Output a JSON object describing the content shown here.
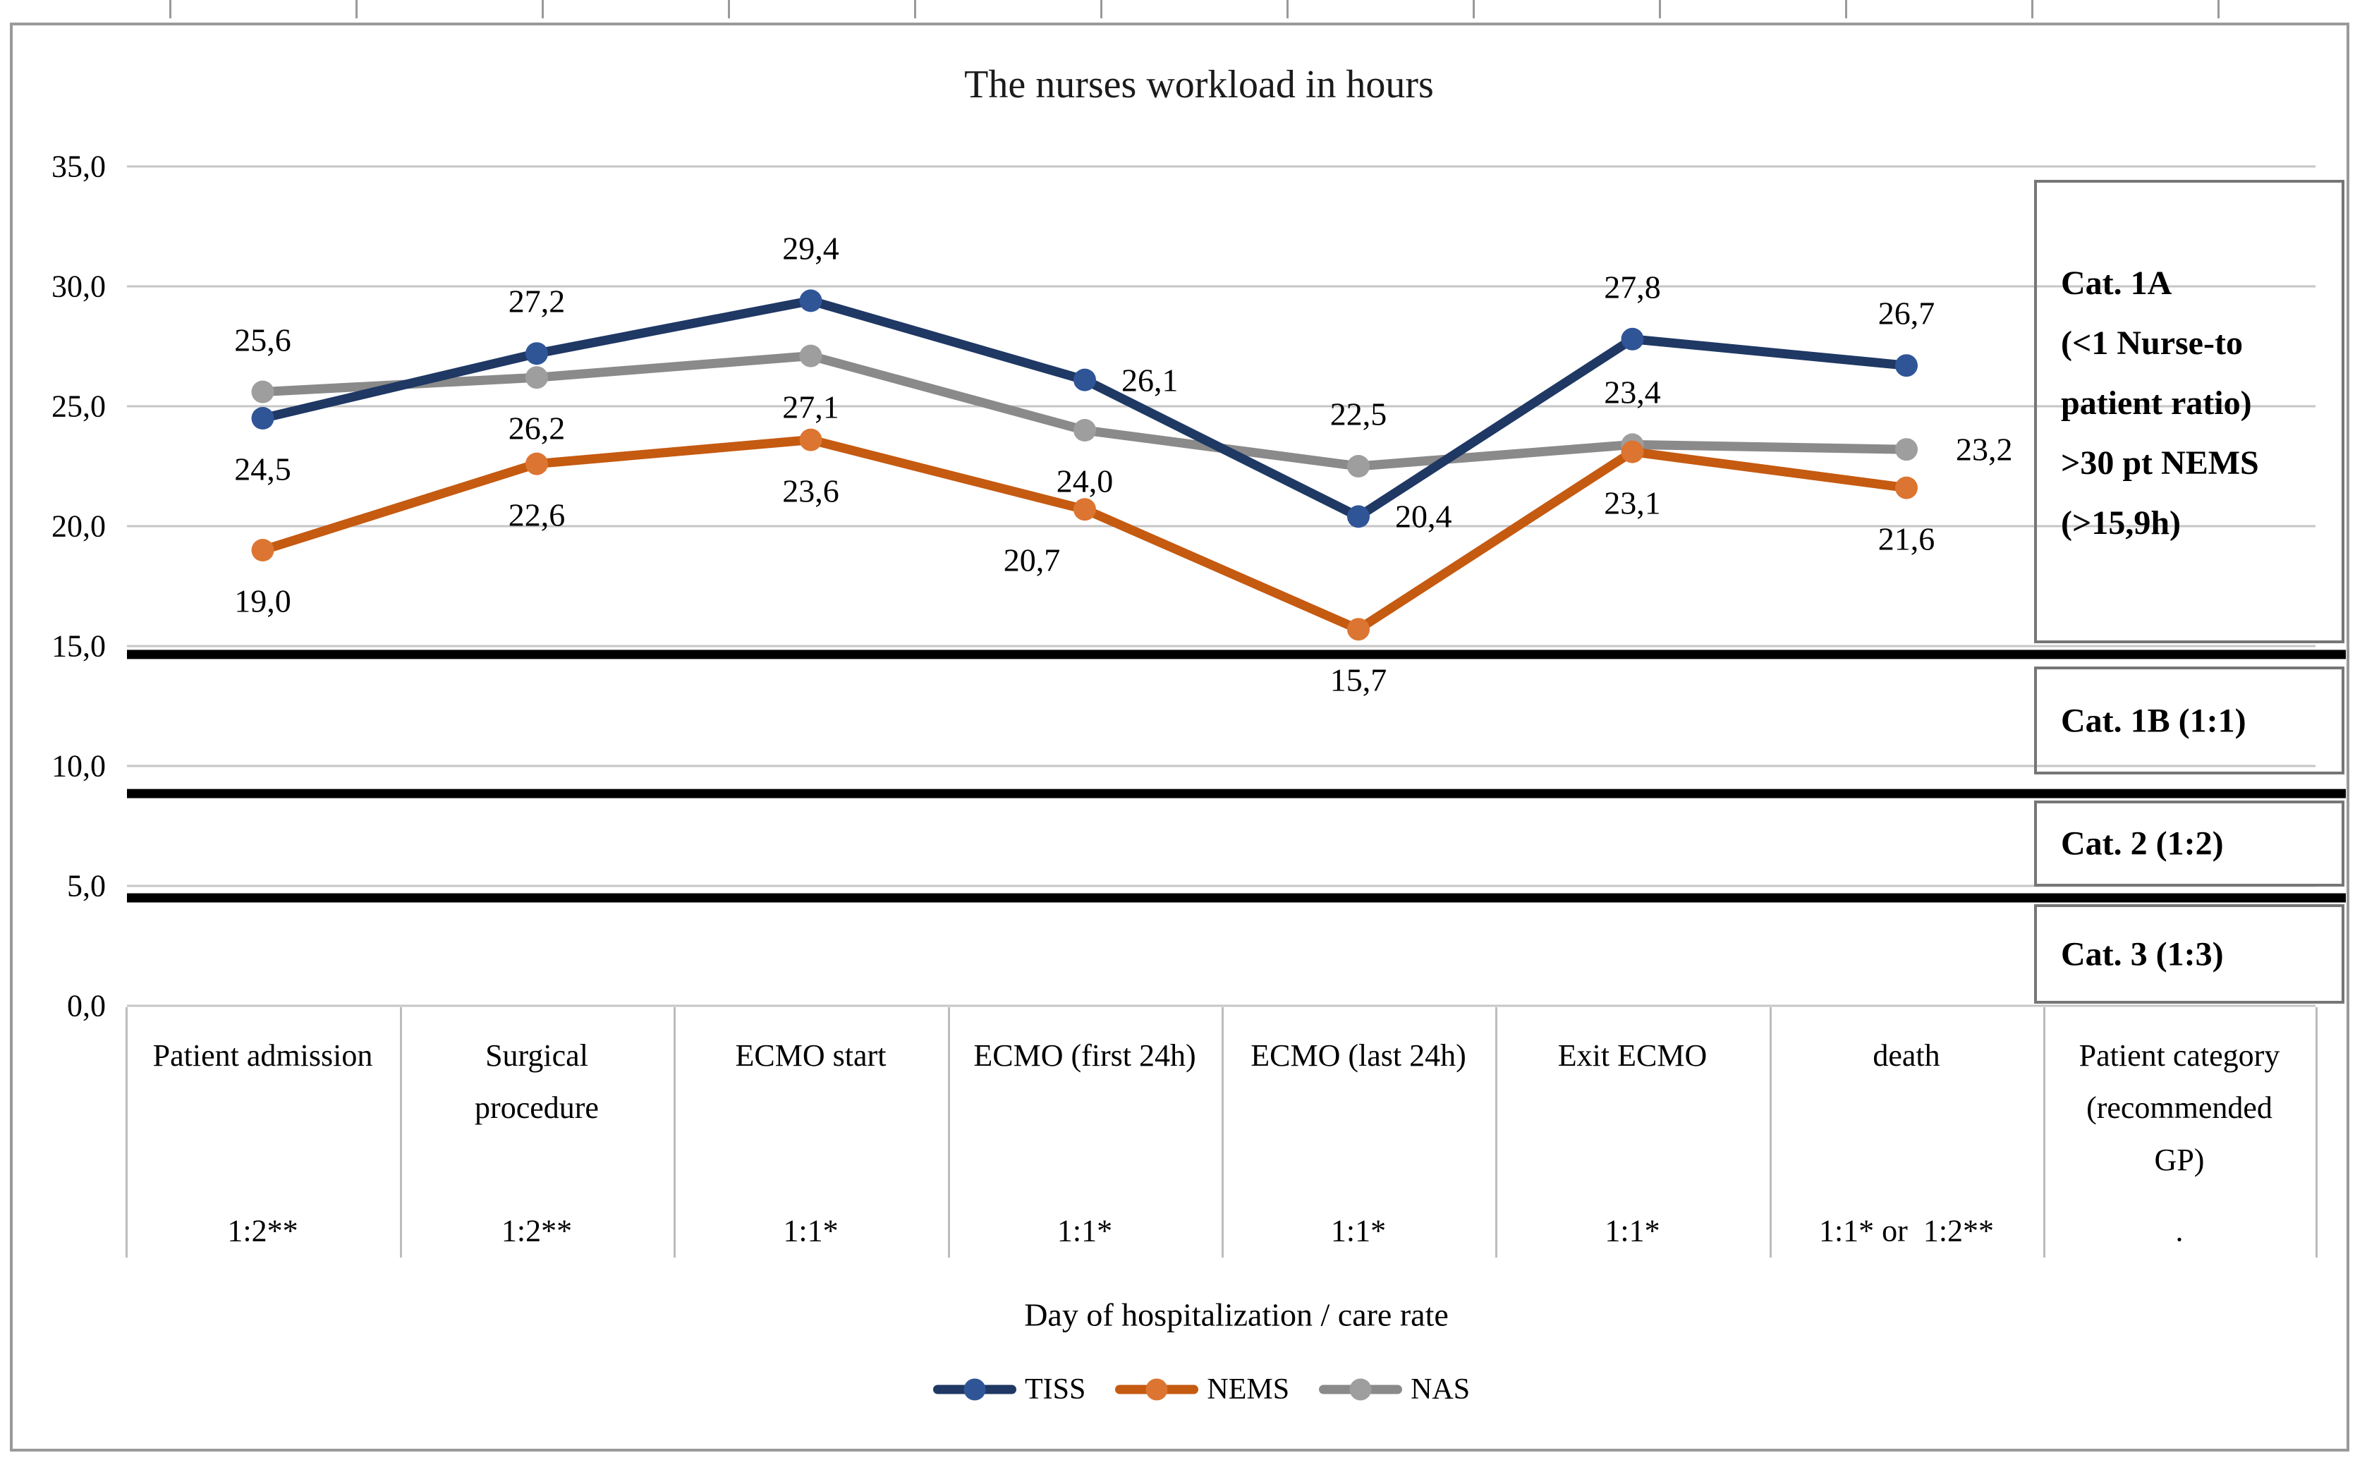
{
  "title": "The nurses workload in hours",
  "chart_data": {
    "type": "line",
    "title": "The nurses workload in hours",
    "xlabel": "Day of hospitalization / care rate",
    "ylabel": "",
    "ylim": [
      0,
      35
    ],
    "grid": true,
    "legend_position": "bottom",
    "categories": [
      "Patient admission",
      "Surgical procedure",
      "ECMO start",
      "ECMO (first 24h)",
      "ECMO (last 24h)",
      "Exit ECMO",
      "death"
    ],
    "care_rates": [
      "1:2**",
      "1:2**",
      "1:1*",
      "1:1*",
      "1:1*",
      "1:1*",
      "1:1* or  1:2**"
    ],
    "y_ticks": [
      {
        "label": "35,0",
        "value": 35
      },
      {
        "label": "30,0",
        "value": 30
      },
      {
        "label": "25,0",
        "value": 25
      },
      {
        "label": "20,0",
        "value": 20
      },
      {
        "label": "15,0",
        "value": 15
      },
      {
        "label": "10,0",
        "value": 10
      },
      {
        "label": "5,0",
        "value": 5
      },
      {
        "label": "0,0",
        "value": 0
      }
    ],
    "thresholds": [
      14.65,
      8.85,
      4.5
    ],
    "series": [
      {
        "name": "NAS",
        "color": "#8a8a8a",
        "marker_color": "#9e9e9e",
        "values": [
          25.6,
          26.2,
          27.1,
          24.0,
          22.5,
          23.4,
          23.2
        ],
        "labels": [
          "25,6",
          "26,2",
          "27,1",
          "24,0",
          "22,5",
          "23,4",
          "23,2"
        ],
        "label_pos": [
          "above",
          "below",
          "below",
          "below",
          "above",
          "above",
          "right"
        ],
        "label_dx": [
          0,
          0,
          0,
          0,
          0,
          0,
          18
        ]
      },
      {
        "name": "NEMS",
        "color": "#c55a11",
        "marker_color": "#dc7531",
        "values": [
          19.0,
          22.6,
          23.6,
          20.7,
          15.7,
          23.1,
          21.6
        ],
        "labels": [
          "19,0",
          "22,6",
          "23,6",
          "20,7",
          "15,7",
          "23,1",
          "21,6"
        ],
        "label_pos": [
          "below",
          "below",
          "below",
          "below",
          "below",
          "below",
          "below"
        ],
        "label_dx": [
          0,
          0,
          0,
          -75,
          0,
          0,
          0
        ]
      },
      {
        "name": "TISS",
        "color": "#1f3864",
        "marker_color": "#2f5597",
        "values": [
          24.5,
          27.2,
          29.4,
          26.1,
          20.4,
          27.8,
          26.7
        ],
        "labels": [
          "24,5",
          "27,2",
          "29,4",
          "26,1",
          "20,4",
          "27,8",
          "26,7"
        ],
        "label_pos": [
          "below",
          "above",
          "above",
          "right",
          "right",
          "above",
          "above"
        ],
        "label_dx": [
          0,
          0,
          0,
          0,
          0,
          0,
          0
        ]
      }
    ]
  },
  "legend": [
    "TISS",
    "NEMS",
    "NAS"
  ],
  "category_boxes": [
    {
      "lines": [
        "Cat. 1A",
        "(<1 Nurse-to",
        "patient ratio)",
        ">30 pt NEMS",
        "(>15,9h)"
      ]
    },
    {
      "lines": [
        "Cat. 1B (1:1)"
      ]
    },
    {
      "lines": [
        "Cat. 2 (1:2)"
      ]
    },
    {
      "lines": [
        "Cat. 3 (1:3)"
      ]
    }
  ],
  "table": {
    "columns": [
      {
        "header_lines": [
          "Patient admission"
        ],
        "care_rate": "1:2**"
      },
      {
        "header_lines": [
          "Surgical",
          "procedure"
        ],
        "care_rate": "1:2**"
      },
      {
        "header_lines": [
          "ECMO start"
        ],
        "care_rate": "1:1*"
      },
      {
        "header_lines": [
          "ECMO (first 24h)"
        ],
        "care_rate": "1:1*"
      },
      {
        "header_lines": [
          "ECMO (last 24h)"
        ],
        "care_rate": "1:1*"
      },
      {
        "header_lines": [
          "Exit ECMO"
        ],
        "care_rate": "1:1*"
      },
      {
        "header_lines": [
          "death"
        ],
        "care_rate": "1:1* or  1:2**"
      },
      {
        "header_lines": [
          "Patient category",
          "(recommended",
          "GP)"
        ],
        "care_rate": "."
      }
    ]
  },
  "axis_title": "Day of hospitalization / care rate"
}
